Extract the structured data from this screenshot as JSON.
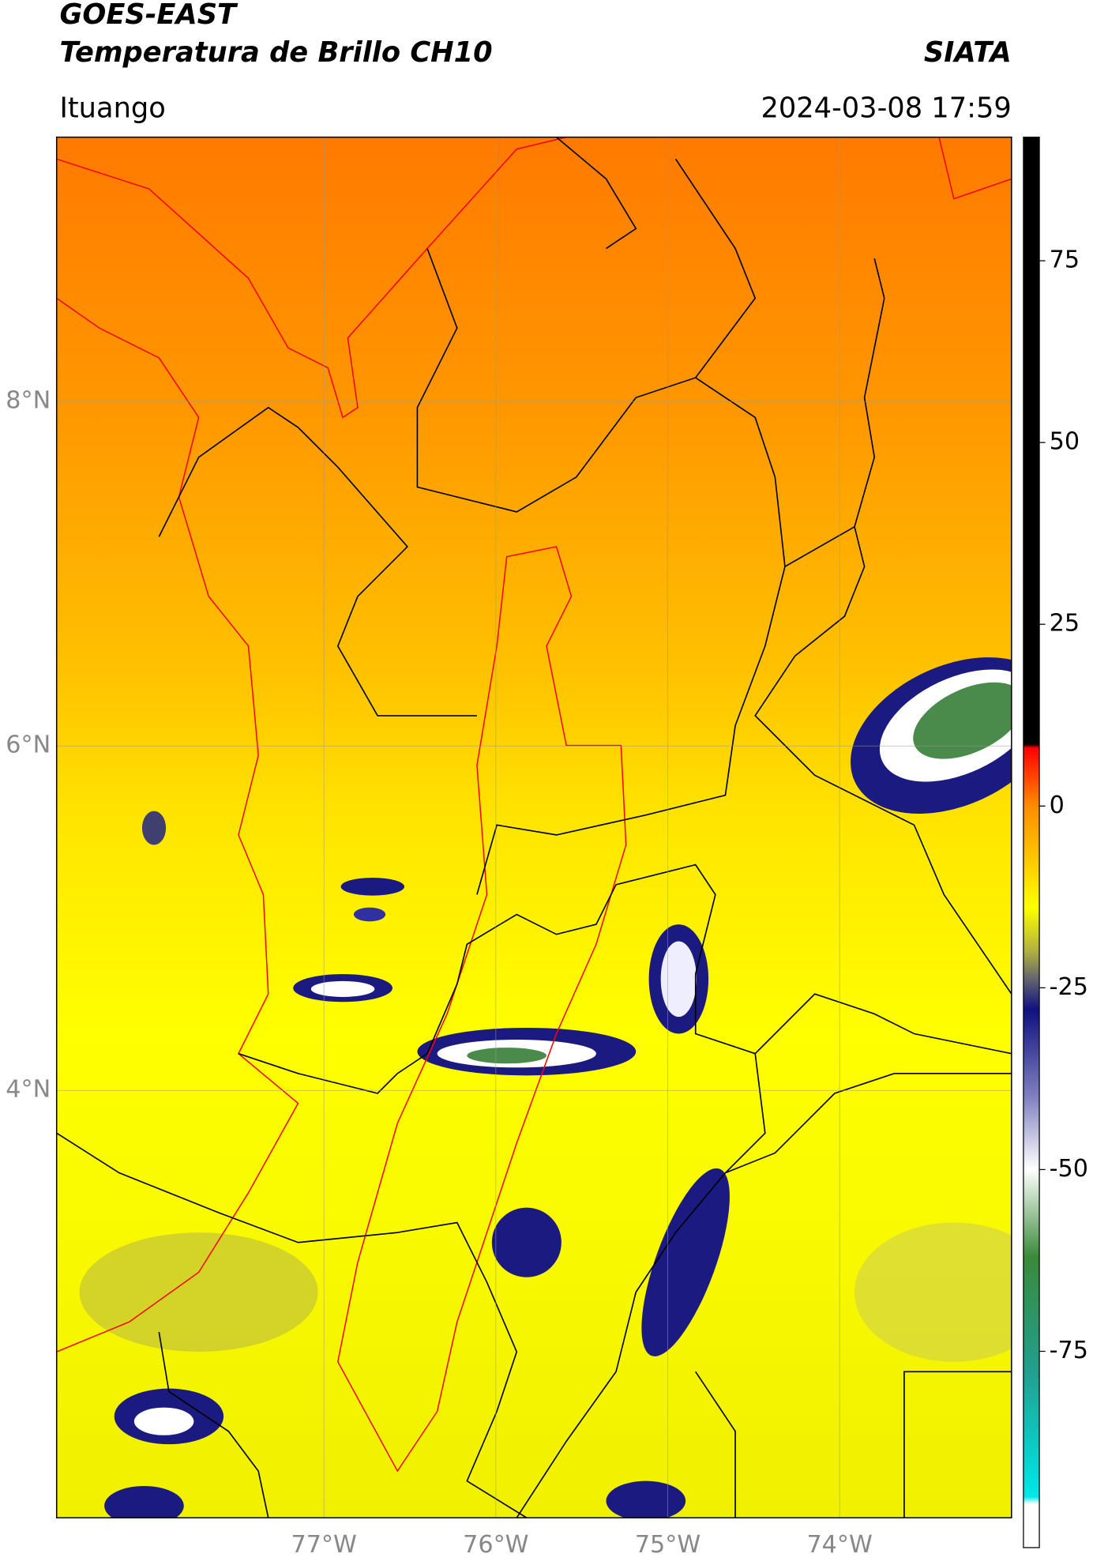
{
  "header": {
    "satellite": "GOES-EAST",
    "product": "Temperatura de Brillo CH10",
    "source": "SIATA",
    "location": "Ituango",
    "datetime": "2024-03-08 17:59"
  },
  "map": {
    "xlim": [
      -78.555,
      -73.0
    ],
    "ylim": [
      1.518,
      9.535
    ],
    "xticks": [
      {
        "value": -77,
        "label": "77°W"
      },
      {
        "value": -76,
        "label": "76°W"
      },
      {
        "value": -75,
        "label": "75°W"
      },
      {
        "value": -74,
        "label": "74°W"
      }
    ],
    "yticks": [
      {
        "value": 4,
        "label": "4°N"
      },
      {
        "value": 6,
        "label": "6°N"
      },
      {
        "value": 8,
        "label": "8°N"
      }
    ],
    "grid": true
  },
  "colorbar": {
    "lim": [
      -102,
      92
    ],
    "ticks": [
      -75,
      -50,
      -25,
      0,
      25,
      50,
      75
    ],
    "stops": [
      {
        "value": 92,
        "color": "#000000"
      },
      {
        "value": 8.5,
        "color": "#000000"
      },
      {
        "value": 8,
        "color": "#ff0000"
      },
      {
        "value": 0,
        "color": "#ff8c00"
      },
      {
        "value": -14,
        "color": "#ffff00"
      },
      {
        "value": -20,
        "color": "#b0b040"
      },
      {
        "value": -24,
        "color": "#606070"
      },
      {
        "value": -28,
        "color": "#101080"
      },
      {
        "value": -40,
        "color": "#8080c0"
      },
      {
        "value": -50,
        "color": "#ffffff"
      },
      {
        "value": -62,
        "color": "#3a8a3a"
      },
      {
        "value": -78,
        "color": "#20a090"
      },
      {
        "value": -95,
        "color": "#00e8e8"
      },
      {
        "value": -96,
        "color": "#ffffff"
      },
      {
        "value": -102,
        "color": "#ffffff"
      }
    ]
  }
}
